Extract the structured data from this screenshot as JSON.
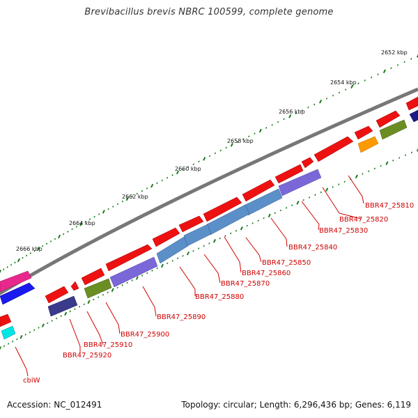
{
  "title": "Brevibacillus brevis NBRC 100599, complete genome",
  "footer": {
    "accession": "Accession: NC_012491",
    "topology": "Topology: circular; Length: 6,296,436 bp; Genes: 6,119"
  },
  "kbp_labels": [
    "2652 kbp",
    "2654 kbp",
    "2656 kbp",
    "2658 kbp",
    "2660 kbp",
    "2662 kbp",
    "2664 kbp",
    "2666 kbp"
  ],
  "gene_labels": [
    "BBR47_25810",
    "BBR47_25820",
    "BBR47_25830",
    "BBR47_25840",
    "BBR47_25850",
    "BBR47_25860",
    "BBR47_25870",
    "BBR47_25880",
    "BBR47_25890",
    "BBR47_25900",
    "BBR47_25910",
    "BBR47_25920",
    "cbiW"
  ],
  "colors": {
    "forward_gene": "#ee1111",
    "blue_gene": "#5b8fc8",
    "purple_gene": "#7b68d8",
    "olive_gene": "#6b8e23",
    "navy_gene": "#3b3b8b",
    "orange_gene": "#ff9900",
    "magenta_gene": "#e8288a",
    "dark_blue_gene": "#1a1aee",
    "cyan_gene": "#00e6e6",
    "label": "#d00000",
    "tick": "#1a7a1a"
  }
}
